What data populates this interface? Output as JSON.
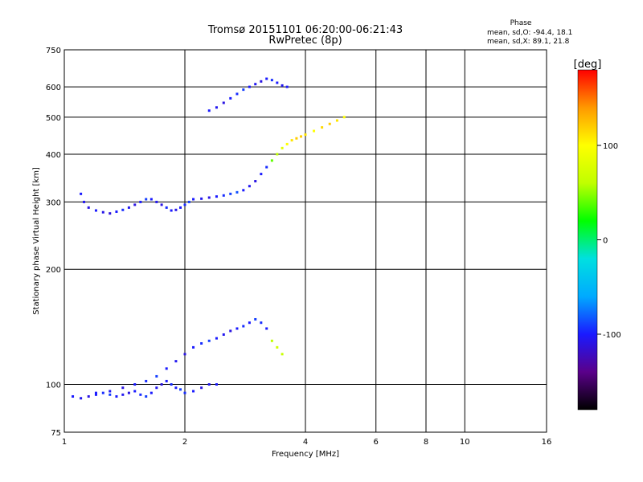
{
  "chart_data": {
    "type": "scatter",
    "title": "Tromsø 20151101 06:20:00-06:21:43",
    "subtitle": "RwPretec (8p)",
    "xlabel": "Frequency [MHz]",
    "ylabel": "Stationary phase Virtual Height [km]",
    "x_scale": "log",
    "y_scale": "log",
    "xlim": [
      1,
      16
    ],
    "ylim": [
      75,
      750
    ],
    "x_ticks": [
      1,
      2,
      4,
      6,
      8,
      10,
      16
    ],
    "y_ticks": [
      75,
      100,
      200,
      300,
      400,
      500,
      600,
      750
    ],
    "grid": true,
    "stats_header": "Phase",
    "stats": [
      "mean, sd,O: -94.4, 18.1",
      "mean, sd,X:  89.1, 21.8"
    ],
    "colorbar": {
      "label": "[deg]",
      "min": -180,
      "max": 180,
      "ticks": [
        100,
        0,
        -100
      ],
      "stops": [
        "#000000",
        "#5a008a",
        "#1a1aff",
        "#00aaff",
        "#00e0e0",
        "#00ff00",
        "#c0ff00",
        "#ffff00",
        "#ff9900",
        "#ff0000"
      ]
    },
    "series": [
      {
        "x": [
          1.1,
          1.12,
          1.15,
          1.2,
          1.25,
          1.3,
          1.35,
          1.4,
          1.45,
          1.5,
          1.55,
          1.6,
          1.65,
          1.7,
          1.75,
          1.8,
          1.85,
          1.9,
          1.95,
          2.0,
          2.05,
          2.1,
          2.2,
          2.3,
          2.4,
          2.5,
          2.6,
          2.7,
          2.8,
          2.9,
          3.0,
          3.1,
          3.2,
          3.3,
          3.4,
          3.5,
          3.6,
          3.7,
          3.8,
          3.9,
          4.0,
          4.2,
          4.4,
          4.6,
          4.8,
          5.0
        ],
        "y": [
          315,
          300,
          290,
          285,
          282,
          280,
          283,
          286,
          290,
          295,
          300,
          305,
          305,
          300,
          295,
          290,
          285,
          286,
          290,
          295,
          300,
          305,
          306,
          308,
          310,
          312,
          315,
          318,
          322,
          330,
          340,
          355,
          370,
          385,
          400,
          415,
          425,
          435,
          440,
          445,
          450,
          460,
          470,
          480,
          490,
          500
        ],
        "phase": [
          -100,
          -105,
          -110,
          -100,
          -108,
          -112,
          -100,
          -95,
          -105,
          -110,
          -100,
          -90,
          -100,
          -105,
          -110,
          -95,
          -100,
          -108,
          -100,
          -95,
          -90,
          -100,
          -105,
          -110,
          -100,
          -95,
          -90,
          -85,
          -100,
          -105,
          -110,
          -100,
          -95,
          40,
          60,
          80,
          100,
          110,
          120,
          120,
          110,
          100,
          115,
          120,
          110,
          100
        ]
      },
      {
        "x": [
          2.3,
          2.4,
          2.5,
          2.6,
          2.7,
          2.8,
          2.9,
          3.0,
          3.1,
          3.2,
          3.3,
          3.4,
          3.5,
          3.6
        ],
        "y": [
          520,
          530,
          545,
          560,
          575,
          590,
          600,
          610,
          620,
          630,
          625,
          615,
          605,
          600
        ],
        "phase": [
          -100,
          -105,
          -110,
          -100,
          -95,
          -90,
          -100,
          -105,
          -110,
          -100,
          -95,
          -100,
          -105,
          -100
        ]
      },
      {
        "x": [
          1.2,
          1.3,
          1.4,
          1.5,
          1.6,
          1.7,
          1.8,
          1.9,
          2.0,
          2.1,
          2.2,
          2.3,
          2.4,
          2.5,
          2.6,
          2.7,
          2.8,
          2.9,
          3.0,
          3.1,
          3.2,
          3.3,
          3.4,
          3.5
        ],
        "y": [
          95,
          96,
          98,
          100,
          102,
          105,
          110,
          115,
          120,
          125,
          128,
          130,
          132,
          135,
          138,
          140,
          142,
          145,
          148,
          145,
          140,
          130,
          125,
          120
        ],
        "phase": [
          -100,
          -105,
          -110,
          -100,
          -95,
          -90,
          -100,
          -105,
          -110,
          -100,
          -95,
          -90,
          -100,
          -105,
          -110,
          -100,
          -95,
          -100,
          -90,
          -95,
          -100,
          60,
          70,
          65
        ]
      },
      {
        "x": [
          1.05,
          1.1,
          1.15,
          1.2,
          1.25,
          1.3,
          1.35,
          1.4,
          1.45,
          1.5,
          1.55,
          1.6,
          1.65,
          1.7,
          1.75,
          1.8,
          1.85,
          1.9,
          1.95,
          2.0,
          2.1,
          2.2,
          2.3,
          2.4
        ],
        "y": [
          93,
          92,
          93,
          94,
          95,
          94,
          93,
          94,
          95,
          96,
          94,
          93,
          95,
          98,
          100,
          102,
          100,
          98,
          97,
          95,
          96,
          98,
          100,
          100
        ],
        "phase": [
          -100,
          -105,
          -110,
          -100,
          -95,
          -90,
          -100,
          -105,
          -110,
          -100,
          -95,
          -90,
          -100,
          -105,
          -110,
          -100,
          -95,
          -100,
          -90,
          -95,
          -100,
          -110,
          -105,
          -100
        ]
      }
    ]
  }
}
